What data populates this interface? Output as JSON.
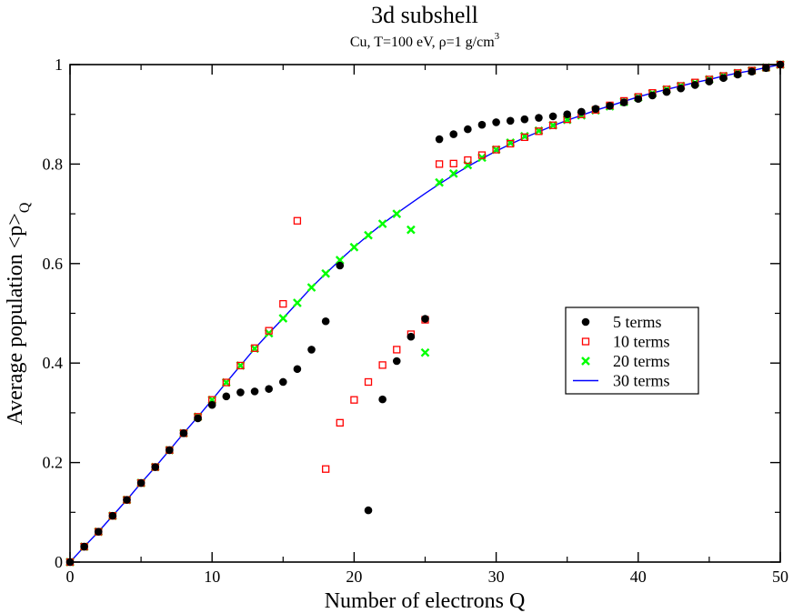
{
  "chart_data": {
    "type": "scatter",
    "title": "3d subshell",
    "subtitle": {
      "text": "Cu, T=100 eV, ρ=1 g/cm",
      "superscript": "3"
    },
    "xlabel": "Number of electrons Q",
    "ylabel": {
      "text": "Average population <p>",
      "subscript": "Q"
    },
    "xlim": [
      0,
      50
    ],
    "ylim": [
      0,
      1
    ],
    "xticks": [
      0,
      10,
      20,
      30,
      40,
      50
    ],
    "xtick_labels": [
      "0",
      "10",
      "20",
      "30",
      "40",
      "50"
    ],
    "yticks": [
      0,
      0.2,
      0.4,
      0.6,
      0.8,
      1
    ],
    "ytick_labels": [
      "0",
      "0.2",
      "0.4",
      "0.6",
      "0.8",
      "1"
    ],
    "x_minor_step": 5,
    "y_minor_step": 0.1,
    "grid": false,
    "legend_position": "center-right",
    "series": [
      {
        "name": "5 terms",
        "marker": "filled-circle",
        "color": "#000000",
        "x": [
          0,
          1,
          2,
          3,
          4,
          5,
          6,
          7,
          8,
          9,
          10,
          11,
          12,
          13,
          14,
          15,
          16,
          17,
          18,
          19,
          21,
          22,
          23,
          24,
          25,
          26,
          27,
          28,
          29,
          30,
          31,
          32,
          33,
          34,
          35,
          36,
          37,
          38,
          39,
          40,
          41,
          42,
          43,
          44,
          45,
          46,
          47,
          48,
          49,
          50
        ],
        "y": [
          0,
          0.031,
          0.061,
          0.093,
          0.125,
          0.159,
          0.191,
          0.225,
          0.259,
          0.289,
          0.316,
          0.333,
          0.341,
          0.343,
          0.348,
          0.362,
          0.388,
          0.427,
          0.484,
          0.596,
          0.104,
          0.327,
          0.404,
          0.453,
          0.489,
          0.85,
          0.86,
          0.87,
          0.879,
          0.884,
          0.887,
          0.89,
          0.893,
          0.896,
          0.9,
          0.905,
          0.911,
          0.917,
          0.924,
          0.931,
          0.938,
          0.945,
          0.952,
          0.959,
          0.966,
          0.973,
          0.98,
          0.986,
          0.993,
          1.0
        ]
      },
      {
        "name": "10 terms",
        "marker": "open-square",
        "color": "#ff0000",
        "x": [
          0,
          1,
          2,
          3,
          4,
          5,
          6,
          7,
          8,
          9,
          10,
          11,
          12,
          13,
          14,
          15,
          16,
          18,
          19,
          20,
          21,
          22,
          23,
          24,
          25,
          26,
          27,
          28,
          29,
          30,
          31,
          32,
          33,
          34,
          35,
          36,
          37,
          38,
          39,
          40,
          41,
          42,
          43,
          44,
          45,
          46,
          47,
          48,
          49,
          50
        ],
        "y": [
          0,
          0.031,
          0.061,
          0.093,
          0.125,
          0.159,
          0.191,
          0.225,
          0.259,
          0.292,
          0.326,
          0.361,
          0.395,
          0.43,
          0.465,
          0.519,
          0.686,
          0.187,
          0.28,
          0.326,
          0.362,
          0.396,
          0.427,
          0.458,
          0.487,
          0.8,
          0.801,
          0.808,
          0.818,
          0.829,
          0.841,
          0.854,
          0.866,
          0.878,
          0.89,
          0.9,
          0.909,
          0.918,
          0.927,
          0.935,
          0.943,
          0.95,
          0.957,
          0.964,
          0.97,
          0.977,
          0.983,
          0.988,
          0.994,
          1.0
        ]
      },
      {
        "name": "20 terms",
        "marker": "x",
        "color": "#00ff00",
        "x": [
          0,
          1,
          2,
          3,
          4,
          5,
          6,
          7,
          8,
          9,
          10,
          11,
          12,
          13,
          14,
          15,
          16,
          17,
          18,
          19,
          20,
          21,
          22,
          23,
          24,
          25,
          26,
          27,
          28,
          29,
          30,
          31,
          32,
          33,
          34,
          35,
          36,
          37,
          38,
          39,
          40,
          41,
          42,
          43,
          44,
          45,
          46,
          47,
          48,
          49,
          50
        ],
        "y": [
          0,
          0.031,
          0.061,
          0.093,
          0.125,
          0.159,
          0.191,
          0.225,
          0.259,
          0.292,
          0.326,
          0.361,
          0.395,
          0.429,
          0.46,
          0.49,
          0.521,
          0.552,
          0.58,
          0.607,
          0.633,
          0.657,
          0.68,
          0.7,
          0.668,
          0.421,
          0.763,
          0.781,
          0.798,
          0.813,
          0.829,
          0.843,
          0.856,
          0.867,
          0.878,
          0.889,
          0.898,
          0.908,
          0.916,
          0.925,
          0.934,
          0.942,
          0.95,
          0.957,
          0.963,
          0.97,
          0.977,
          0.983,
          0.988,
          0.994,
          1.0
        ]
      },
      {
        "name": "30 terms",
        "marker": "line",
        "color": "#0000ff",
        "x": [
          0,
          1,
          2,
          3,
          4,
          5,
          6,
          7,
          8,
          9,
          10,
          11,
          12,
          13,
          14,
          15,
          16,
          17,
          18,
          19,
          20,
          21,
          22,
          23,
          24,
          25,
          26,
          27,
          28,
          29,
          30,
          31,
          32,
          33,
          34,
          35,
          36,
          37,
          38,
          39,
          40,
          41,
          42,
          43,
          44,
          45,
          46,
          47,
          48,
          49,
          50
        ],
        "y": [
          0,
          0.031,
          0.061,
          0.093,
          0.125,
          0.159,
          0.191,
          0.225,
          0.259,
          0.292,
          0.326,
          0.361,
          0.395,
          0.429,
          0.46,
          0.49,
          0.521,
          0.552,
          0.58,
          0.607,
          0.633,
          0.657,
          0.68,
          0.701,
          0.721,
          0.741,
          0.76,
          0.778,
          0.795,
          0.811,
          0.826,
          0.84,
          0.853,
          0.865,
          0.877,
          0.888,
          0.898,
          0.908,
          0.917,
          0.926,
          0.935,
          0.943,
          0.95,
          0.957,
          0.964,
          0.97,
          0.977,
          0.983,
          0.988,
          0.994,
          1.0
        ]
      }
    ]
  }
}
